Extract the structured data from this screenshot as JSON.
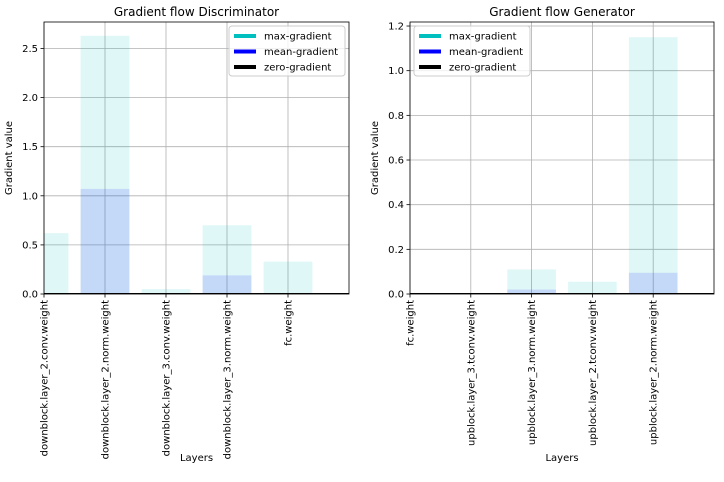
{
  "chart_data": [
    {
      "type": "bar",
      "title": "Gradient flow Discriminator",
      "xlabel": "Layers",
      "ylabel": "Gradient value",
      "categories": [
        "downblock.layer_2.conv.weight",
        "downblock.layer_2.norm.weight",
        "downblock.layer_3.conv.weight",
        "downblock.layer_3.norm.weight",
        "fc.weight"
      ],
      "series": [
        {
          "name": "max-gradient",
          "color": "#00bfbf",
          "opacity": 0.12,
          "values": [
            0.62,
            2.63,
            0.05,
            0.7,
            0.33
          ]
        },
        {
          "name": "mean-gradient",
          "color": "#0000ff",
          "opacity": 0.12,
          "values": [
            0.005,
            1.07,
            0.005,
            0.19,
            0.005
          ]
        }
      ],
      "hline": {
        "name": "zero-gradient",
        "color": "#000000",
        "value": 0
      },
      "ylim": [
        0,
        2.77
      ],
      "yticks": [
        {
          "value": 0,
          "label": "0.0"
        },
        0.5,
        {
          "value": 1,
          "label": "1.0"
        },
        1.5,
        {
          "value": 2,
          "label": "2.0"
        },
        2.5
      ],
      "grid": true,
      "legend": "upper right"
    },
    {
      "type": "bar",
      "title": "Gradient flow Generator",
      "xlabel": "Layers",
      "ylabel": "Gradient value",
      "categories": [
        "fc.weight",
        "upblock.layer_3.tconv.weight",
        "upblock.layer_3.norm.weight",
        "upblock.layer_2.tconv.weight",
        "upblock.layer_2.norm.weight"
      ],
      "series": [
        {
          "name": "max-gradient",
          "color": "#00bfbf",
          "opacity": 0.12,
          "values": [
            0.005,
            0.003,
            0.11,
            0.055,
            1.15
          ]
        },
        {
          "name": "mean-gradient",
          "color": "#0000ff",
          "opacity": 0.12,
          "values": [
            0.002,
            0.001,
            0.02,
            0.003,
            0.095
          ]
        }
      ],
      "hline": {
        "name": "zero-gradient",
        "color": "#000000",
        "value": 0
      },
      "ylim": [
        0,
        1.218
      ],
      "yticks": [
        {
          "value": 0,
          "label": "0.0"
        },
        0.2,
        0.4,
        0.6,
        0.8,
        {
          "value": 1,
          "label": "1.0"
        },
        1.2
      ],
      "grid": true,
      "legend": "upper left"
    }
  ]
}
